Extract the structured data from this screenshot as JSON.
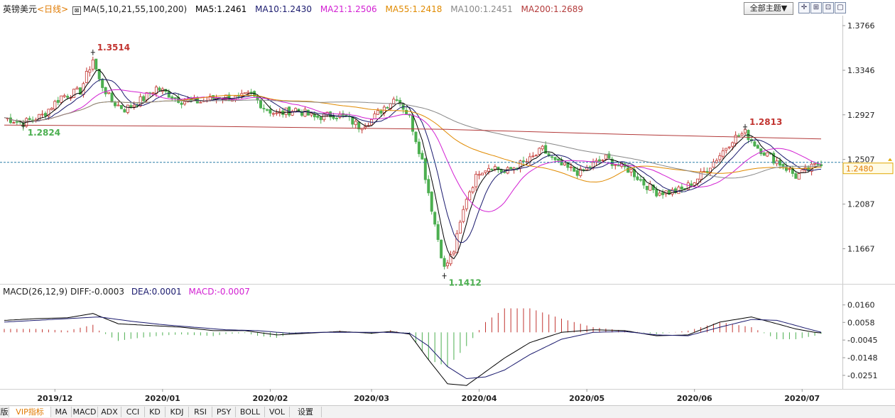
{
  "header": {
    "symbol": "英镑美元",
    "period": "<日线>",
    "ma_label": "MA(5,10,21,55,100,200)",
    "ma5": "MA5:1.2461",
    "ma10": "MA10:1.2430",
    "ma21": "MA21:1.2506",
    "ma55": "MA55:1.2418",
    "ma100": "MA100:1.2451",
    "ma200": "MA200:1.2689",
    "theme_button": "全部主题▼"
  },
  "macd_header": {
    "label": "MACD(26,12,9)",
    "diff": "DIFF:-0.0003",
    "dea": "DEA:0.0001",
    "macd": "MACD:-0.0007"
  },
  "price_axis": [
    "1.3766",
    "1.3346",
    "1.2927",
    "1.2507",
    "1.2087",
    "1.1667"
  ],
  "current_price": "1.2480",
  "macd_axis": [
    "0.0160",
    "0.0058",
    "-0.0045",
    "-0.0148",
    "-0.0251"
  ],
  "x_axis": [
    "2019/12",
    "2020/01",
    "2020/02",
    "2020/03",
    "2020/04",
    "2020/05",
    "2020/06",
    "2020/07"
  ],
  "annotations": [
    "1.3514",
    "1.2824",
    "1.2813",
    "1.1412"
  ],
  "tabs": [
    "版",
    "VIP指标",
    "MA",
    "MACD",
    "ADX",
    "CCI",
    "KD",
    "KDJ",
    "RSI",
    "PSY",
    "BOLL",
    "VOL",
    "设置"
  ],
  "colors": {
    "up": "#c23531",
    "down": "#4caf50",
    "ma5": "#000000",
    "ma10": "#1a1a6e",
    "ma21": "#d21fd2",
    "ma55": "#e08a00",
    "ma100": "#888888",
    "ma200": "#b33a3a",
    "macd_diff": "#000000",
    "macd_dea": "#1a1a6e"
  },
  "chart_data": [
    {
      "type": "candlestick",
      "title": "英镑美元 日线",
      "y_ticks": [
        1.3766,
        1.3346,
        1.2927,
        1.2507,
        1.2087,
        1.1667
      ],
      "ylim": [
        1.135,
        1.386
      ],
      "x_categories": [
        "2019/12",
        "2020/01",
        "2020/02",
        "2020/03",
        "2020/04",
        "2020/05",
        "2020/06",
        "2020/07"
      ],
      "close_path": [
        [
          0,
          1.29
        ],
        [
          6,
          1.285
        ],
        [
          12,
          1.292
        ],
        [
          18,
          1.31
        ],
        [
          24,
          1.315
        ],
        [
          28,
          1.345
        ],
        [
          30,
          1.325
        ],
        [
          34,
          1.305
        ],
        [
          38,
          1.298
        ],
        [
          44,
          1.308
        ],
        [
          48,
          1.318
        ],
        [
          52,
          1.312
        ],
        [
          56,
          1.306
        ],
        [
          62,
          1.305
        ],
        [
          68,
          1.31
        ],
        [
          74,
          1.308
        ],
        [
          78,
          1.312
        ],
        [
          82,
          1.3
        ],
        [
          86,
          1.293
        ],
        [
          92,
          1.298
        ],
        [
          98,
          1.29
        ],
        [
          104,
          1.293
        ],
        [
          108,
          1.29
        ],
        [
          112,
          1.282
        ],
        [
          116,
          1.288
        ],
        [
          120,
          1.3
        ],
        [
          124,
          1.31
        ],
        [
          128,
          1.29
        ],
        [
          132,
          1.25
        ],
        [
          136,
          1.19
        ],
        [
          139,
          1.148
        ],
        [
          142,
          1.165
        ],
        [
          146,
          1.215
        ],
        [
          150,
          1.24
        ],
        [
          154,
          1.245
        ],
        [
          158,
          1.238
        ],
        [
          162,
          1.245
        ],
        [
          166,
          1.25
        ],
        [
          170,
          1.26
        ],
        [
          174,
          1.248
        ],
        [
          178,
          1.242
        ],
        [
          182,
          1.238
        ],
        [
          186,
          1.246
        ],
        [
          190,
          1.252
        ],
        [
          194,
          1.245
        ],
        [
          198,
          1.24
        ],
        [
          202,
          1.228
        ],
        [
          206,
          1.22
        ],
        [
          210,
          1.22
        ],
        [
          214,
          1.222
        ],
        [
          218,
          1.23
        ],
        [
          222,
          1.242
        ],
        [
          226,
          1.255
        ],
        [
          230,
          1.27
        ],
        [
          234,
          1.276
        ],
        [
          238,
          1.262
        ],
        [
          242,
          1.253
        ],
        [
          246,
          1.245
        ],
        [
          250,
          1.235
        ],
        [
          254,
          1.241
        ],
        [
          258,
          1.248
        ]
      ],
      "series": [
        {
          "name": "MA5",
          "value": 1.2461
        },
        {
          "name": "MA10",
          "value": 1.243
        },
        {
          "name": "MA21",
          "value": 1.2506
        },
        {
          "name": "MA55",
          "value": 1.2418
        },
        {
          "name": "MA100",
          "value": 1.2451
        },
        {
          "name": "MA200",
          "value": 1.2689
        }
      ],
      "annotations": [
        {
          "text": "1.3514",
          "type": "high",
          "color": "#c23531"
        },
        {
          "text": "1.2824",
          "type": "low",
          "color": "#4caf50"
        },
        {
          "text": "1.2813",
          "type": "high",
          "color": "#c23531"
        },
        {
          "text": "1.1412",
          "type": "low",
          "color": "#4caf50"
        }
      ],
      "current_price": 1.248
    },
    {
      "type": "line",
      "title": "MACD(26,12,9)",
      "y_ticks": [
        0.016,
        0.0058,
        -0.0045,
        -0.0148,
        -0.0251
      ],
      "ylim": [
        -0.033,
        0.02
      ],
      "last_values": {
        "DIFF": -0.0003,
        "DEA": 0.0001,
        "MACD": -0.0007
      },
      "diff_path": [
        [
          0,
          0.007
        ],
        [
          10,
          0.008
        ],
        [
          20,
          0.0085
        ],
        [
          28,
          0.011
        ],
        [
          36,
          0.005
        ],
        [
          46,
          0.004
        ],
        [
          56,
          0.003
        ],
        [
          66,
          0.001
        ],
        [
          76,
          0.001
        ],
        [
          86,
          -0.0015
        ],
        [
          96,
          -0.0005
        ],
        [
          106,
          0.0005
        ],
        [
          116,
          -0.0005
        ],
        [
          122,
          0.0005
        ],
        [
          128,
          -0.001
        ],
        [
          134,
          -0.016
        ],
        [
          140,
          -0.03
        ],
        [
          146,
          -0.031
        ],
        [
          152,
          -0.023
        ],
        [
          158,
          -0.015
        ],
        [
          166,
          -0.006
        ],
        [
          176,
          0.0
        ],
        [
          186,
          0.0015
        ],
        [
          196,
          0.001
        ],
        [
          206,
          -0.002
        ],
        [
          216,
          -0.0015
        ],
        [
          226,
          0.006
        ],
        [
          236,
          0.009
        ],
        [
          244,
          0.005
        ],
        [
          250,
          0.002
        ],
        [
          256,
          0.0
        ],
        [
          258,
          -0.0003
        ]
      ],
      "dea_path": [
        [
          0,
          0.006
        ],
        [
          10,
          0.007
        ],
        [
          20,
          0.008
        ],
        [
          30,
          0.009
        ],
        [
          40,
          0.0065
        ],
        [
          50,
          0.0045
        ],
        [
          60,
          0.003
        ],
        [
          70,
          0.0015
        ],
        [
          80,
          0.001
        ],
        [
          90,
          -0.0005
        ],
        [
          100,
          0.0
        ],
        [
          110,
          0.0
        ],
        [
          120,
          0.0
        ],
        [
          128,
          -0.0005
        ],
        [
          134,
          -0.008
        ],
        [
          140,
          -0.02
        ],
        [
          146,
          -0.027
        ],
        [
          152,
          -0.026
        ],
        [
          158,
          -0.022
        ],
        [
          166,
          -0.013
        ],
        [
          176,
          -0.004
        ],
        [
          186,
          0.0
        ],
        [
          196,
          0.0005
        ],
        [
          206,
          -0.0015
        ],
        [
          216,
          -0.002
        ],
        [
          226,
          0.003
        ],
        [
          236,
          0.0075
        ],
        [
          244,
          0.007
        ],
        [
          250,
          0.004
        ],
        [
          256,
          0.001
        ],
        [
          258,
          0.0001
        ]
      ]
    }
  ]
}
